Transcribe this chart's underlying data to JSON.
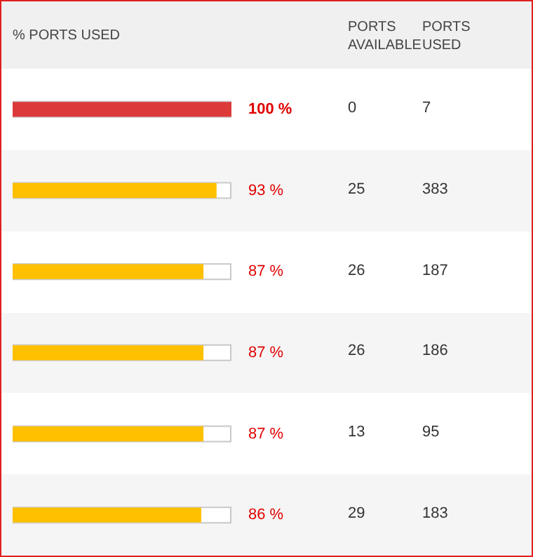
{
  "chart_data": [
    {
      "type": "bar",
      "orientation": "horizontal",
      "title": "% PORTS USED",
      "categories": [
        null,
        null,
        null,
        null,
        null,
        null
      ],
      "xlim": [
        0,
        100
      ],
      "tick_labels": false,
      "colors": [
        "#dc3a3a",
        "#ffc000",
        "#ffc000",
        "#ffc000",
        "#ffc000",
        "#ffc000"
      ],
      "values": [
        100,
        93,
        87,
        87,
        87,
        86
      ],
      "value_labels": [
        "100 %",
        "93 %",
        "87 %",
        "87 %",
        "87 %",
        "86 %"
      ]
    },
    {
      "type": "other",
      "title": "PORTS AVAILABLE",
      "values": [
        0,
        25,
        26,
        26,
        13,
        29
      ],
      "data_labels": true
    },
    {
      "type": "other",
      "title": "PORTS USED",
      "values": [
        7,
        383,
        187,
        186,
        95,
        183
      ],
      "data_labels": true
    }
  ]
}
